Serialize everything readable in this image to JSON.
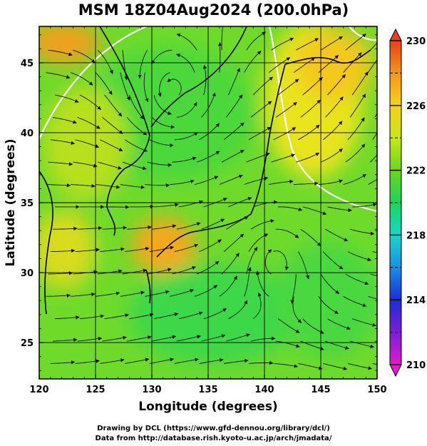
{
  "title": "MSM 18Z04Aug2024 (200.0hPa)",
  "credits": {
    "line1": "Drawing by DCL (https://www.gfd-dennou.org/library/dcl/)",
    "line2": "Data from http://database.rish.kyoto-u.ac.jp/arch/jmadata/"
  },
  "chart_data": {
    "type": "heatmap",
    "title": "MSM 18Z04Aug2024 (200.0hPa)",
    "xlabel": "Longitude (degrees)",
    "ylabel": "Latitude  (degrees)",
    "xlim": [
      120,
      150
    ],
    "ylim": [
      22.4,
      47.6
    ],
    "x_ticks": [
      "120",
      "125",
      "130",
      "135",
      "140",
      "145",
      "150"
    ],
    "y_ticks": [
      "25",
      "30",
      "35",
      "40",
      "45"
    ],
    "grid": true,
    "overlay": "streamlines",
    "colorbar": {
      "range": [
        210,
        230
      ],
      "ticks": [
        "210",
        "214",
        "218",
        "222",
        "226",
        "230"
      ],
      "colors": [
        "#e11bc8",
        "#7a1fd6",
        "#1a2fd6",
        "#1a8fe6",
        "#1ad6c8",
        "#1ad65a",
        "#6ad61a",
        "#c8e61a",
        "#f5d21a",
        "#f5961a",
        "#e8401a"
      ]
    },
    "features": [
      {
        "name": "cyclonic vortex",
        "lon": 132,
        "lat": 43
      },
      {
        "name": "warm anomaly",
        "lon": 132,
        "lat": 31.5
      },
      {
        "name": "warm band",
        "lon": 144,
        "lat": 43
      }
    ]
  }
}
